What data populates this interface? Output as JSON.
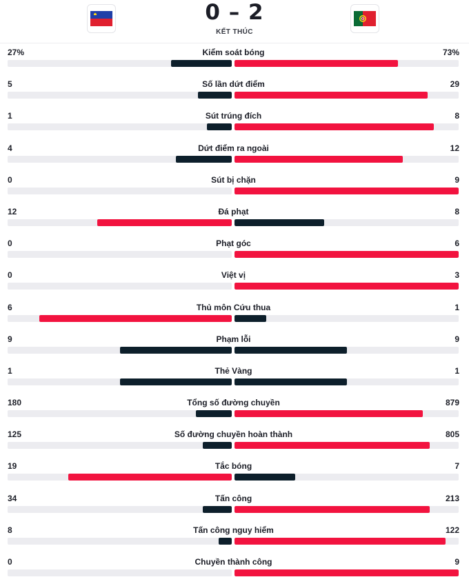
{
  "match": {
    "score": "0 – 2",
    "status": "KẾT THÚC",
    "home": {
      "flag": "liechtenstein-flag-icon",
      "flag_colors": [
        "#1f3fa8",
        "#e0202f"
      ]
    },
    "away": {
      "flag": "portugal-flag-icon",
      "flag_colors": [
        "#0a6b35",
        "#e0202f",
        "#f7d417"
      ]
    }
  },
  "colors": {
    "winner": "#f2133f",
    "loser": "#0d1f2b",
    "track": "#ececf0"
  },
  "stats": [
    {
      "label": "Kiểm soát bóng",
      "home": "27%",
      "away": "73%",
      "home_fill": 0.27,
      "away_fill": 0.73
    },
    {
      "label": "Số lần dứt điểm",
      "home": "5",
      "away": "29",
      "home_fill": 0.15,
      "away_fill": 0.86
    },
    {
      "label": "Sút trúng đích",
      "home": "1",
      "away": "8",
      "home_fill": 0.11,
      "away_fill": 0.89
    },
    {
      "label": "Dứt điểm ra ngoài",
      "home": "4",
      "away": "12",
      "home_fill": 0.25,
      "away_fill": 0.75
    },
    {
      "label": "Sút bị chặn",
      "home": "0",
      "away": "9",
      "home_fill": 0.0,
      "away_fill": 1.0
    },
    {
      "label": "Đá phạt",
      "home": "12",
      "away": "8",
      "home_fill": 0.6,
      "away_fill": 0.4
    },
    {
      "label": "Phạt góc",
      "home": "0",
      "away": "6",
      "home_fill": 0.0,
      "away_fill": 1.0
    },
    {
      "label": "Việt vị",
      "home": "0",
      "away": "3",
      "home_fill": 0.0,
      "away_fill": 1.0
    },
    {
      "label": "Thủ môn Cứu thua",
      "home": "6",
      "away": "1",
      "home_fill": 0.86,
      "away_fill": 0.14
    },
    {
      "label": "Phạm lỗi",
      "home": "9",
      "away": "9",
      "home_fill": 0.5,
      "away_fill": 0.5
    },
    {
      "label": "Thẻ Vàng",
      "home": "1",
      "away": "1",
      "home_fill": 0.5,
      "away_fill": 0.5
    },
    {
      "label": "Tổng số đường chuyền",
      "home": "180",
      "away": "879",
      "home_fill": 0.16,
      "away_fill": 0.84
    },
    {
      "label": "Số đường chuyền hoàn thành",
      "home": "125",
      "away": "805",
      "home_fill": 0.13,
      "away_fill": 0.87
    },
    {
      "label": "Tắc bóng",
      "home": "19",
      "away": "7",
      "home_fill": 0.73,
      "away_fill": 0.27
    },
    {
      "label": "Tấn công",
      "home": "34",
      "away": "213",
      "home_fill": 0.13,
      "away_fill": 0.87
    },
    {
      "label": "Tấn công nguy hiểm",
      "home": "8",
      "away": "122",
      "home_fill": 0.06,
      "away_fill": 0.94
    },
    {
      "label": "Chuyền thành công",
      "home": "0",
      "away": "9",
      "home_fill": 0.0,
      "away_fill": 1.0
    }
  ]
}
